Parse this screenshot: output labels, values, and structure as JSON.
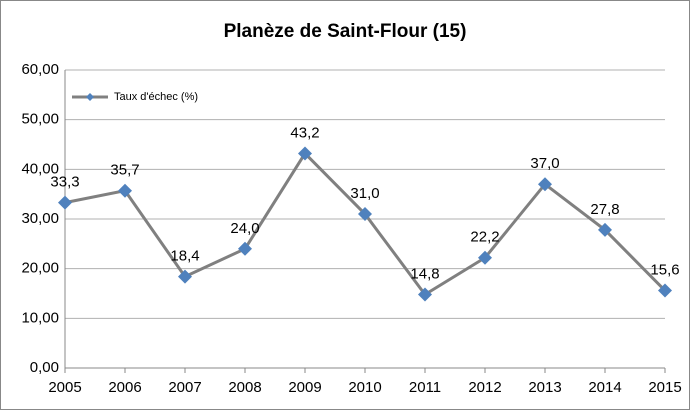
{
  "chart_data": {
    "type": "line",
    "title": "Planèze de Saint-Flour (15)",
    "x": [
      2005,
      2006,
      2007,
      2008,
      2009,
      2010,
      2011,
      2012,
      2013,
      2014,
      2015
    ],
    "xlim": [
      2005,
      2015
    ],
    "xticks": [
      2005,
      2006,
      2007,
      2008,
      2009,
      2010,
      2011,
      2012,
      2013,
      2014,
      2015
    ],
    "ylim": [
      0,
      60
    ],
    "yticks": [
      {
        "value": 0,
        "label": "0,00"
      },
      {
        "value": 10,
        "label": "10,00"
      },
      {
        "value": 20,
        "label": "20,00"
      },
      {
        "value": 30,
        "label": "30,00"
      },
      {
        "value": 40,
        "label": "40,00"
      },
      {
        "value": 50,
        "label": "50,00"
      },
      {
        "value": 60,
        "label": "60,00"
      }
    ],
    "grid": true,
    "legend": "top-left",
    "series": [
      {
        "name": "Taux d'échec (%)",
        "color": "#4f81bd",
        "line_color": "#808080",
        "values": [
          33.3,
          35.7,
          18.4,
          24.0,
          43.2,
          31.0,
          14.8,
          22.2,
          37.0,
          27.8,
          15.6
        ],
        "value_labels": [
          "33,3",
          "35,7",
          "18,4",
          "24,0",
          "43,2",
          "31,0",
          "14,8",
          "22,2",
          "37,0",
          "27,8",
          "15,6"
        ]
      }
    ]
  }
}
